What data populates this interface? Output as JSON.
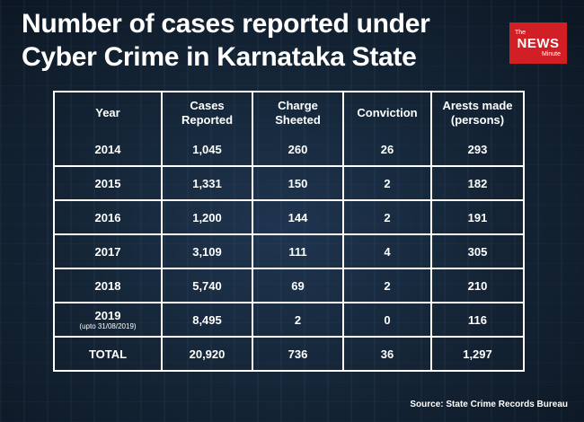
{
  "title_line1": "Number of cases reported under",
  "title_line2": "Cyber Crime in Karnataka State",
  "logo": {
    "the": "The",
    "news": "NEWS",
    "minute": "Minute"
  },
  "headers": [
    "Year",
    "Cases Reported",
    "Charge Sheeted",
    "Conviction",
    "Arests made (persons)"
  ],
  "chart_data": {
    "type": "table",
    "columns": [
      "Year",
      "Cases Reported",
      "Charge Sheeted",
      "Conviction",
      "Arests made (persons)"
    ],
    "rows": [
      {
        "year": "2014",
        "note": "",
        "cases": "1,045",
        "charge": "260",
        "conviction": "26",
        "arrests": "293"
      },
      {
        "year": "2015",
        "note": "",
        "cases": "1,331",
        "charge": "150",
        "conviction": "2",
        "arrests": "182"
      },
      {
        "year": "2016",
        "note": "",
        "cases": "1,200",
        "charge": "144",
        "conviction": "2",
        "arrests": "191"
      },
      {
        "year": "2017",
        "note": "",
        "cases": "3,109",
        "charge": "111",
        "conviction": "4",
        "arrests": "305"
      },
      {
        "year": "2018",
        "note": "",
        "cases": "5,740",
        "charge": "69",
        "conviction": "2",
        "arrests": "210"
      },
      {
        "year": "2019",
        "note": "(upto 31/08/2019)",
        "cases": "8,495",
        "charge": "2",
        "conviction": "0",
        "arrests": "116"
      }
    ],
    "total": {
      "label": "TOTAL",
      "cases": "20,920",
      "charge": "736",
      "conviction": "36",
      "arrests": "1,297"
    }
  },
  "source": "Source: State Crime Records Bureau"
}
